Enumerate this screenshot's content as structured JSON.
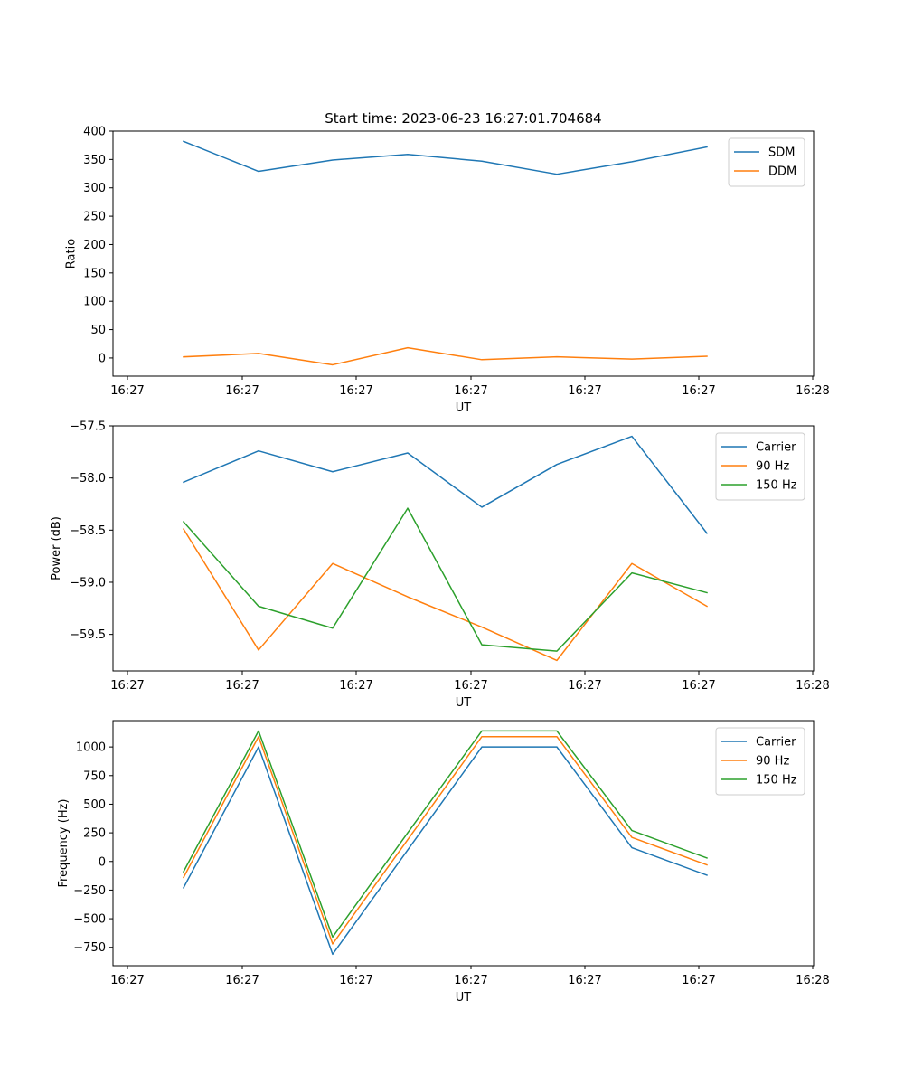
{
  "chart_data": [
    {
      "type": "line",
      "title": "Start time: 2023-06-23 16:27:01.704684",
      "xlabel": "UT",
      "ylabel": "Ratio",
      "x_tick_labels": [
        "16:27",
        "16:27",
        "16:27",
        "16:27",
        "16:27",
        "16:27",
        "16:28"
      ],
      "ylim": [
        -32,
        400
      ],
      "y_ticks": [
        0,
        50,
        100,
        150,
        200,
        250,
        300,
        350,
        400
      ],
      "y_tick_labels": [
        "0",
        "50",
        "100",
        "150",
        "200",
        "250",
        "300",
        "350",
        "400"
      ],
      "grid": false,
      "legend_position": "top-right",
      "series": [
        {
          "name": "SDM",
          "color": "#1f77b4",
          "values": [
            382,
            329,
            349,
            359,
            347,
            324,
            346,
            372
          ]
        },
        {
          "name": "DDM",
          "color": "#ff7f0e",
          "values": [
            2,
            8,
            -12,
            18,
            -3,
            2,
            -2,
            3
          ]
        }
      ]
    },
    {
      "type": "line",
      "title": "",
      "xlabel": "UT",
      "ylabel": "Power (dB)",
      "x_tick_labels": [
        "16:27",
        "16:27",
        "16:27",
        "16:27",
        "16:27",
        "16:27",
        "16:28"
      ],
      "ylim": [
        -59.85,
        -57.5
      ],
      "y_ticks": [
        -59.5,
        -59.0,
        -58.5,
        -58.0,
        -57.5
      ],
      "y_tick_labels": [
        "−59.5",
        "−59.0",
        "−58.5",
        "−58.0",
        "−57.5"
      ],
      "grid": false,
      "legend_position": "top-right",
      "series": [
        {
          "name": "Carrier",
          "color": "#1f77b4",
          "values": [
            -58.04,
            -57.74,
            -57.94,
            -57.76,
            -58.28,
            -57.87,
            -57.6,
            -58.53
          ]
        },
        {
          "name": "90 Hz",
          "color": "#ff7f0e",
          "values": [
            -58.49,
            -59.65,
            -58.82,
            -59.14,
            -59.43,
            -59.75,
            -58.82,
            -59.23
          ]
        },
        {
          "name": "150 Hz",
          "color": "#2ca02c",
          "values": [
            -58.42,
            -59.23,
            -59.44,
            -58.29,
            -59.6,
            -59.66,
            -58.91,
            -59.1
          ]
        }
      ]
    },
    {
      "type": "line",
      "title": "",
      "xlabel": "UT",
      "ylabel": "Frequency (Hz)",
      "x_tick_labels": [
        "16:27",
        "16:27",
        "16:27",
        "16:27",
        "16:27",
        "16:27",
        "16:28"
      ],
      "ylim": [
        -910,
        1230
      ],
      "y_ticks": [
        -750,
        -500,
        -250,
        0,
        250,
        500,
        750,
        1000
      ],
      "y_tick_labels": [
        "−750",
        "−500",
        "−250",
        "0",
        "250",
        "500",
        "750",
        "1000"
      ],
      "grid": false,
      "legend_position": "top-right",
      "series": [
        {
          "name": "Carrier",
          "color": "#1f77b4",
          "values": [
            -230,
            1000,
            -810,
            100,
            1000,
            1000,
            120,
            -120
          ]
        },
        {
          "name": "90 Hz",
          "color": "#ff7f0e",
          "values": [
            -140,
            1090,
            -720,
            190,
            1090,
            1090,
            210,
            -30
          ]
        },
        {
          "name": "150 Hz",
          "color": "#2ca02c",
          "values": [
            -90,
            1140,
            -660,
            250,
            1140,
            1140,
            270,
            30
          ]
        }
      ]
    }
  ]
}
